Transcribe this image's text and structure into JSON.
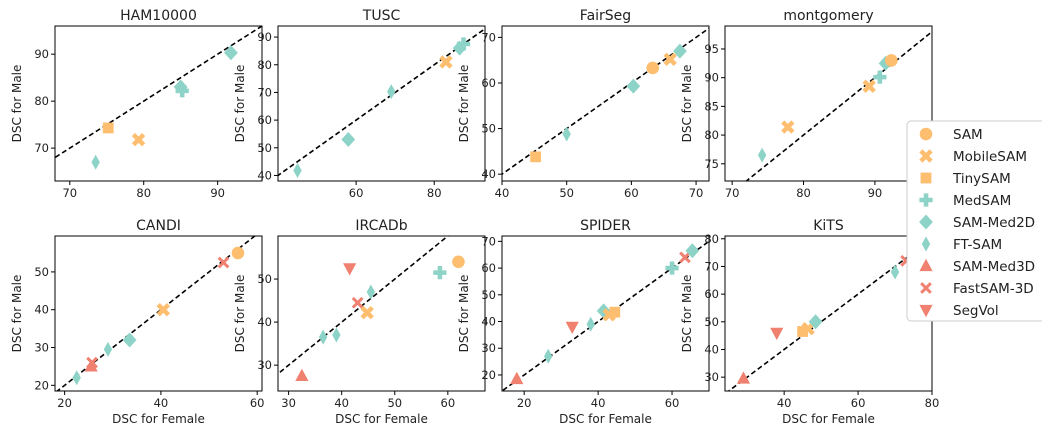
{
  "figure": {
    "xlabel": "DSC for Female",
    "ylabel": "DSC for Male"
  },
  "legend": {
    "placement": "right",
    "entries": [
      {
        "name": "SAM",
        "color": "#fdbe6f",
        "marker": "circle"
      },
      {
        "name": "MobileSAM",
        "color": "#fdbe6f",
        "marker": "x-thick"
      },
      {
        "name": "TinySAM",
        "color": "#fdbe6f",
        "marker": "square"
      },
      {
        "name": "MedSAM",
        "color": "#8dd3c7",
        "marker": "plus-thick"
      },
      {
        "name": "SAM-Med2D",
        "color": "#8dd3c7",
        "marker": "diamond"
      },
      {
        "name": "FT-SAM",
        "color": "#8dd3c7",
        "marker": "thin-diamond"
      },
      {
        "name": "SAM-Med3D",
        "color": "#f08070",
        "marker": "triangle-up"
      },
      {
        "name": "FastSAM-3D",
        "color": "#f08070",
        "marker": "x-thin"
      },
      {
        "name": "SegVol",
        "color": "#f08070",
        "marker": "triangle-down"
      }
    ]
  },
  "chart_data": [
    {
      "type": "scatter",
      "title": "HAM10000",
      "xlabel": "",
      "ylabel": "DSC for Male",
      "xlim": [
        68,
        96
      ],
      "ylim": [
        63,
        96
      ],
      "xticks": [
        70,
        80,
        90
      ],
      "yticks": [
        70,
        80,
        90
      ],
      "reference_line": "y = x (dashed)",
      "grid": false,
      "points": [
        {
          "series": "FT-SAM",
          "x": 73.5,
          "y": 67.0
        },
        {
          "series": "TinySAM",
          "x": 75.2,
          "y": 74.3
        },
        {
          "series": "MobileSAM",
          "x": 79.3,
          "y": 71.8
        },
        {
          "series": "SAM-Med2D",
          "x": 85.0,
          "y": 83.0
        },
        {
          "series": "MedSAM",
          "x": 85.2,
          "y": 82.2
        },
        {
          "series": "SAM-Med2D",
          "x": 91.8,
          "y": 90.3
        }
      ]
    },
    {
      "type": "scatter",
      "title": "TUSC",
      "xlabel": "",
      "ylabel": "DSC for Male",
      "xlim": [
        40,
        93
      ],
      "ylim": [
        38,
        94
      ],
      "xticks": [
        60,
        80
      ],
      "yticks": [
        40,
        50,
        60,
        70,
        80,
        90
      ],
      "reference_line": "y = x (dashed)",
      "grid": false,
      "points": [
        {
          "series": "FT-SAM",
          "x": 45.0,
          "y": 41.8
        },
        {
          "series": "SAM-Med2D",
          "x": 58.0,
          "y": 53.0
        },
        {
          "series": "FT-SAM",
          "x": 69.0,
          "y": 70.3
        },
        {
          "series": "MobileSAM",
          "x": 83.0,
          "y": 81.0
        },
        {
          "series": "SAM-Med2D",
          "x": 86.5,
          "y": 86.0
        },
        {
          "series": "MedSAM",
          "x": 87.5,
          "y": 87.5
        }
      ]
    },
    {
      "type": "scatter",
      "title": "FairSeg",
      "xlabel": "",
      "ylabel": "DSC for Male",
      "xlim": [
        40,
        72
      ],
      "ylim": [
        38.5,
        72.5
      ],
      "xticks": [
        40,
        50,
        60,
        70
      ],
      "yticks": [
        40,
        50,
        60,
        70
      ],
      "reference_line": "y = x (dashed)",
      "grid": false,
      "points": [
        {
          "series": "TinySAM",
          "x": 45.2,
          "y": 43.8
        },
        {
          "series": "FT-SAM",
          "x": 50.0,
          "y": 48.8
        },
        {
          "series": "SAM-Med2D",
          "x": 60.3,
          "y": 59.3
        },
        {
          "series": "SAM",
          "x": 63.3,
          "y": 63.3
        },
        {
          "series": "MobileSAM",
          "x": 66.0,
          "y": 65.2
        },
        {
          "series": "SAM-Med2D",
          "x": 67.5,
          "y": 67.0
        }
      ]
    },
    {
      "type": "scatter",
      "title": "montgomery",
      "xlabel": "",
      "ylabel": "DSC for Male",
      "xlim": [
        69,
        98
      ],
      "ylim": [
        72,
        99
      ],
      "xticks": [
        70,
        80,
        90
      ],
      "yticks": [
        75,
        80,
        85,
        90,
        95
      ],
      "reference_line": "y = x (dashed)",
      "grid": false,
      "points": [
        {
          "series": "FT-SAM",
          "x": 74.2,
          "y": 76.5
        },
        {
          "series": "MobileSAM",
          "x": 77.8,
          "y": 81.4
        },
        {
          "series": "MobileSAM",
          "x": 89.2,
          "y": 88.5
        },
        {
          "series": "MedSAM",
          "x": 90.7,
          "y": 90.1
        },
        {
          "series": "SAM-Med2D",
          "x": 91.5,
          "y": 92.5
        },
        {
          "series": "SAM",
          "x": 92.3,
          "y": 93.0
        }
      ]
    },
    {
      "type": "scatter",
      "title": "CANDI",
      "xlabel": "DSC for Female",
      "ylabel": "DSC for Male",
      "xlim": [
        18,
        61
      ],
      "ylim": [
        18.5,
        59.5
      ],
      "xticks": [
        20,
        40,
        60
      ],
      "yticks": [
        20,
        30,
        40,
        50
      ],
      "reference_line": "y = x (dashed)",
      "grid": false,
      "points": [
        {
          "series": "FT-SAM",
          "x": 22.5,
          "y": 22.0
        },
        {
          "series": "SAM-Med3D",
          "x": 25.5,
          "y": 25.0
        },
        {
          "series": "FastSAM-3D",
          "x": 25.7,
          "y": 26.0
        },
        {
          "series": "FT-SAM",
          "x": 29.0,
          "y": 29.5
        },
        {
          "series": "SAM-Med2D",
          "x": 33.5,
          "y": 32.0
        },
        {
          "series": "MobileSAM",
          "x": 40.5,
          "y": 40.0
        },
        {
          "series": "FastSAM-3D",
          "x": 53.0,
          "y": 52.5
        },
        {
          "series": "SAM",
          "x": 56.0,
          "y": 55.0
        }
      ]
    },
    {
      "type": "scatter",
      "title": "IRCADb",
      "xlabel": "DSC for Female",
      "ylabel": "DSC for Male",
      "xlim": [
        28,
        67
      ],
      "ylim": [
        24,
        60
      ],
      "xticks": [
        30,
        40,
        50,
        60
      ],
      "yticks": [
        30,
        40,
        50
      ],
      "reference_line": "y = x (dashed)",
      "grid": false,
      "points": [
        {
          "series": "SAM-Med3D",
          "x": 32.5,
          "y": 27.5
        },
        {
          "series": "FT-SAM",
          "x": 36.5,
          "y": 36.5
        },
        {
          "series": "FT-SAM",
          "x": 39.0,
          "y": 37.0
        },
        {
          "series": "SegVol",
          "x": 41.5,
          "y": 52.5
        },
        {
          "series": "FastSAM-3D",
          "x": 43.0,
          "y": 44.5
        },
        {
          "series": "MobileSAM",
          "x": 44.8,
          "y": 42.2
        },
        {
          "series": "FT-SAM",
          "x": 45.5,
          "y": 47.0
        },
        {
          "series": "MedSAM",
          "x": 58.5,
          "y": 51.5
        },
        {
          "series": "SAM",
          "x": 62.0,
          "y": 54.0
        }
      ]
    },
    {
      "type": "scatter",
      "title": "SPIDER",
      "xlabel": "DSC for Female",
      "ylabel": "DSC for Male",
      "xlim": [
        14,
        70
      ],
      "ylim": [
        14,
        72
      ],
      "xticks": [
        20,
        40,
        60
      ],
      "yticks": [
        20,
        30,
        40,
        50,
        60,
        70
      ],
      "reference_line": "y = x (dashed)",
      "grid": false,
      "points": [
        {
          "series": "SAM-Med3D",
          "x": 18.0,
          "y": 18.5
        },
        {
          "series": "FT-SAM",
          "x": 26.5,
          "y": 27.0
        },
        {
          "series": "SegVol",
          "x": 33.0,
          "y": 38.0
        },
        {
          "series": "FT-SAM",
          "x": 38.0,
          "y": 39.0
        },
        {
          "series": "SAM-Med2D",
          "x": 41.5,
          "y": 44.0
        },
        {
          "series": "MobileSAM",
          "x": 43.0,
          "y": 42.5
        },
        {
          "series": "TinySAM",
          "x": 44.5,
          "y": 43.5
        },
        {
          "series": "MedSAM",
          "x": 60.0,
          "y": 60.0
        },
        {
          "series": "FastSAM-3D",
          "x": 63.5,
          "y": 64.0
        },
        {
          "series": "SAM-Med2D",
          "x": 65.5,
          "y": 66.5
        }
      ]
    },
    {
      "type": "scatter",
      "title": "KiTS",
      "xlabel": "DSC for Female",
      "ylabel": "DSC for Male",
      "xlim": [
        24,
        80
      ],
      "ylim": [
        25,
        81
      ],
      "xticks": [
        40,
        60,
        80
      ],
      "yticks": [
        30,
        40,
        50,
        60,
        70,
        80
      ],
      "reference_line": "y = x (dashed)",
      "grid": false,
      "points": [
        {
          "series": "SAM-Med3D",
          "x": 29.0,
          "y": 29.5
        },
        {
          "series": "SegVol",
          "x": 38.0,
          "y": 46.0
        },
        {
          "series": "TinySAM",
          "x": 45.0,
          "y": 46.5
        },
        {
          "series": "MobileSAM",
          "x": 46.5,
          "y": 47.5
        },
        {
          "series": "SAM-Med2D",
          "x": 48.5,
          "y": 50.0
        },
        {
          "series": "FT-SAM",
          "x": 70.0,
          "y": 68.0
        },
        {
          "series": "FastSAM-3D",
          "x": 73.0,
          "y": 72.0
        },
        {
          "series": "SAM",
          "x": 75.5,
          "y": 75.0
        }
      ]
    }
  ]
}
